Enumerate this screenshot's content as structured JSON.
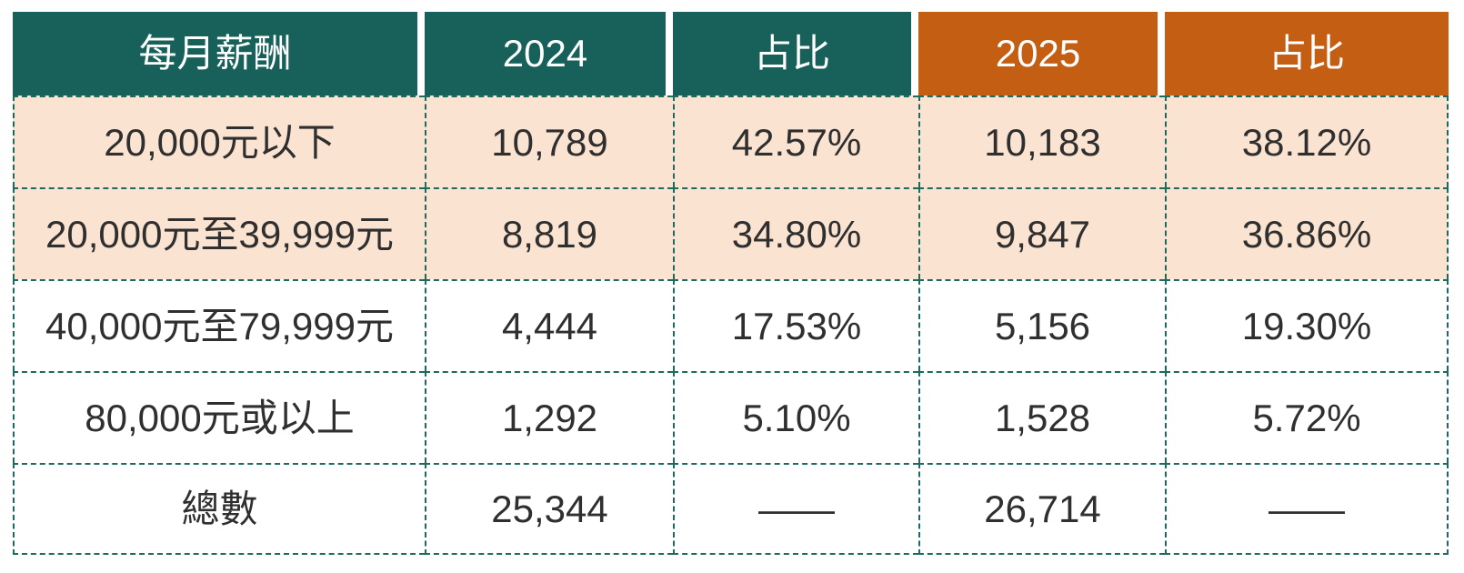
{
  "chart_data": {
    "type": "table",
    "columns": [
      {
        "label": "每月薪酬",
        "variant": "teal"
      },
      {
        "label": "2024",
        "variant": "teal"
      },
      {
        "label": "占比",
        "variant": "teal"
      },
      {
        "label": "2025",
        "variant": "orange"
      },
      {
        "label": "占比",
        "variant": "orange"
      }
    ],
    "rows": [
      {
        "highlight": true,
        "cells": [
          "20,000元以下",
          "10,789",
          "42.57%",
          "10,183",
          "38.12%"
        ]
      },
      {
        "highlight": true,
        "cells": [
          "20,000元至39,999元",
          "8,819",
          "34.80%",
          "9,847",
          "36.86%"
        ]
      },
      {
        "highlight": false,
        "cells": [
          "40,000元至79,999元",
          "4,444",
          "17.53%",
          "5,156",
          "19.30%"
        ]
      },
      {
        "highlight": false,
        "cells": [
          "80,000元或以上",
          "1,292",
          "5.10%",
          "1,528",
          "5.72%"
        ]
      },
      {
        "highlight": false,
        "cells": [
          "總數",
          "25,344",
          "——",
          "26,714",
          "——"
        ]
      }
    ]
  },
  "colors": {
    "teal": "#17615A",
    "orange": "#C35E13",
    "peach": "#FBE3D2",
    "border": "#1D6A5E",
    "text": "#2F2F2F"
  }
}
